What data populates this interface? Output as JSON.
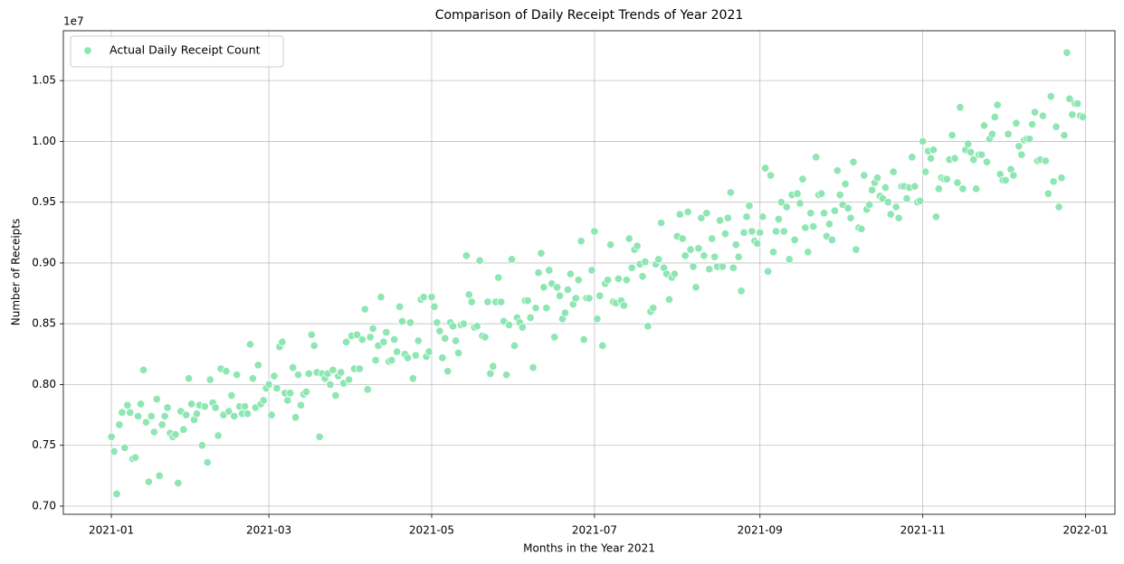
{
  "chart_data": {
    "type": "scatter",
    "title": "Comparison of Daily Receipt Trends of Year 2021",
    "x_label": "Months in the Year 2021",
    "y_label": "Number of Receipts",
    "y_offset_label": "1e7",
    "legend_position": "upper left",
    "grid": true,
    "xlim": [
      -18,
      376
    ],
    "ylim": [
      0.6933,
      1.091
    ],
    "xticks": [
      {
        "value": 0,
        "label": "2021-01"
      },
      {
        "value": 59,
        "label": "2021-03"
      },
      {
        "value": 120,
        "label": "2021-05"
      },
      {
        "value": 181,
        "label": "2021-07"
      },
      {
        "value": 243,
        "label": "2021-09"
      },
      {
        "value": 304,
        "label": "2021-11"
      },
      {
        "value": 365,
        "label": "2022-01"
      }
    ],
    "yticks": [
      {
        "value": 0.7,
        "label": "0.70"
      },
      {
        "value": 0.75,
        "label": "0.75"
      },
      {
        "value": 0.8,
        "label": "0.80"
      },
      {
        "value": 0.85,
        "label": "0.85"
      },
      {
        "value": 0.9,
        "label": "0.90"
      },
      {
        "value": 0.95,
        "label": "0.95"
      },
      {
        "value": 1.0,
        "label": "1.00"
      },
      {
        "value": 1.05,
        "label": "1.05"
      }
    ],
    "x": [
      0,
      1,
      2,
      3,
      4,
      5,
      6,
      7,
      8,
      9,
      10,
      11,
      12,
      13,
      14,
      15,
      16,
      17,
      18,
      19,
      20,
      21,
      22,
      23,
      24,
      25,
      26,
      27,
      28,
      29,
      30,
      31,
      32,
      33,
      34,
      35,
      36,
      37,
      38,
      39,
      40,
      41,
      42,
      43,
      44,
      45,
      46,
      47,
      48,
      49,
      50,
      51,
      52,
      53,
      54,
      55,
      56,
      57,
      58,
      59,
      60,
      61,
      62,
      63,
      64,
      65,
      66,
      67,
      68,
      69,
      70,
      71,
      72,
      73,
      74,
      75,
      76,
      77,
      78,
      79,
      80,
      81,
      82,
      83,
      84,
      85,
      86,
      87,
      88,
      89,
      90,
      91,
      92,
      93,
      94,
      95,
      96,
      97,
      98,
      99,
      100,
      101,
      102,
      103,
      104,
      105,
      106,
      107,
      108,
      109,
      110,
      111,
      112,
      113,
      114,
      115,
      116,
      117,
      118,
      119,
      120,
      121,
      122,
      123,
      124,
      125,
      126,
      127,
      128,
      129,
      130,
      131,
      132,
      133,
      134,
      135,
      136,
      137,
      138,
      139,
      140,
      141,
      142,
      143,
      144,
      145,
      146,
      147,
      148,
      149,
      150,
      151,
      152,
      153,
      154,
      155,
      156,
      157,
      158,
      159,
      160,
      161,
      162,
      163,
      164,
      165,
      166,
      167,
      168,
      169,
      170,
      171,
      172,
      173,
      174,
      175,
      176,
      177,
      178,
      179,
      180,
      181,
      182,
      183,
      184,
      185,
      186,
      187,
      188,
      189,
      190,
      191,
      192,
      193,
      194,
      195,
      196,
      197,
      198,
      199,
      200,
      201,
      202,
      203,
      204,
      205,
      206,
      207,
      208,
      209,
      210,
      211,
      212,
      213,
      214,
      215,
      216,
      217,
      218,
      219,
      220,
      221,
      222,
      223,
      224,
      225,
      226,
      227,
      228,
      229,
      230,
      231,
      232,
      233,
      234,
      235,
      236,
      237,
      238,
      239,
      240,
      241,
      242,
      243,
      244,
      245,
      246,
      247,
      248,
      249,
      250,
      251,
      252,
      253,
      254,
      255,
      256,
      257,
      258,
      259,
      260,
      261,
      262,
      263,
      264,
      265,
      266,
      267,
      268,
      269,
      270,
      271,
      272,
      273,
      274,
      275,
      276,
      277,
      278,
      279,
      280,
      281,
      282,
      283,
      284,
      285,
      286,
      287,
      288,
      289,
      290,
      291,
      292,
      293,
      294,
      295,
      296,
      297,
      298,
      299,
      300,
      301,
      302,
      303,
      304,
      305,
      306,
      307,
      308,
      309,
      310,
      311,
      312,
      313,
      314,
      315,
      316,
      317,
      318,
      319,
      320,
      321,
      322,
      323,
      324,
      325,
      326,
      327,
      328,
      329,
      330,
      331,
      332,
      333,
      334,
      335,
      336,
      337,
      338,
      339,
      340,
      341,
      342,
      343,
      344,
      345,
      346,
      347,
      348,
      349,
      350,
      351,
      352,
      353,
      354,
      355,
      356,
      357,
      358,
      359,
      360,
      361,
      362,
      363,
      364
    ],
    "series": [
      {
        "name": "Actual Daily Receipt Count",
        "color": "#8ee6b3",
        "values": [
          0.757,
          0.745,
          0.71,
          0.767,
          0.777,
          0.748,
          0.783,
          0.777,
          0.739,
          0.74,
          0.774,
          0.784,
          0.812,
          0.769,
          0.72,
          0.774,
          0.761,
          0.788,
          0.725,
          0.767,
          0.774,
          0.781,
          0.76,
          0.757,
          0.759,
          0.719,
          0.778,
          0.763,
          0.775,
          0.805,
          0.784,
          0.771,
          0.776,
          0.783,
          0.75,
          0.782,
          0.736,
          0.804,
          0.785,
          0.781,
          0.758,
          0.813,
          0.775,
          0.811,
          0.778,
          0.791,
          0.774,
          0.808,
          0.782,
          0.776,
          0.782,
          0.776,
          0.833,
          0.805,
          0.781,
          0.816,
          0.784,
          0.787,
          0.797,
          0.8,
          0.775,
          0.807,
          0.797,
          0.831,
          0.835,
          0.793,
          0.787,
          0.793,
          0.814,
          0.773,
          0.808,
          0.783,
          0.792,
          0.794,
          0.809,
          0.841,
          0.832,
          0.81,
          0.757,
          0.809,
          0.805,
          0.809,
          0.8,
          0.812,
          0.791,
          0.807,
          0.81,
          0.801,
          0.835,
          0.804,
          0.84,
          0.813,
          0.841,
          0.813,
          0.837,
          0.862,
          0.796,
          0.839,
          0.846,
          0.82,
          0.832,
          0.872,
          0.835,
          0.843,
          0.819,
          0.82,
          0.837,
          0.827,
          0.864,
          0.852,
          0.825,
          0.822,
          0.851,
          0.805,
          0.824,
          0.836,
          0.87,
          0.872,
          0.823,
          0.827,
          0.872,
          0.864,
          0.851,
          0.844,
          0.822,
          0.838,
          0.811,
          0.851,
          0.848,
          0.836,
          0.826,
          0.849,
          0.85,
          0.906,
          0.874,
          0.868,
          0.847,
          0.848,
          0.902,
          0.84,
          0.839,
          0.868,
          0.809,
          0.815,
          0.868,
          0.888,
          0.868,
          0.852,
          0.808,
          0.849,
          0.903,
          0.832,
          0.855,
          0.851,
          0.847,
          0.869,
          0.869,
          0.855,
          0.814,
          0.863,
          0.892,
          0.908,
          0.88,
          0.863,
          0.894,
          0.883,
          0.839,
          0.88,
          0.873,
          0.854,
          0.859,
          0.878,
          0.891,
          0.866,
          0.871,
          0.886,
          0.918,
          0.837,
          0.871,
          0.871,
          0.894,
          0.926,
          0.854,
          0.873,
          0.832,
          0.883,
          0.886,
          0.915,
          0.868,
          0.867,
          0.887,
          0.869,
          0.865,
          0.886,
          0.92,
          0.896,
          0.911,
          0.914,
          0.899,
          0.889,
          0.901,
          0.848,
          0.86,
          0.863,
          0.899,
          0.903,
          0.933,
          0.896,
          0.891,
          0.87,
          0.888,
          0.891,
          0.922,
          0.94,
          0.92,
          0.906,
          0.942,
          0.911,
          0.897,
          0.88,
          0.912,
          0.937,
          0.906,
          0.941,
          0.895,
          0.92,
          0.905,
          0.897,
          0.935,
          0.897,
          0.924,
          0.937,
          0.958,
          0.896,
          0.915,
          0.905,
          0.877,
          0.925,
          0.938,
          0.947,
          0.926,
          0.918,
          0.916,
          0.925,
          0.938,
          0.978,
          0.893,
          0.972,
          0.909,
          0.926,
          0.936,
          0.95,
          0.926,
          0.946,
          0.903,
          0.956,
          0.919,
          0.957,
          0.949,
          0.969,
          0.929,
          0.909,
          0.941,
          0.93,
          0.987,
          0.956,
          0.957,
          0.941,
          0.922,
          0.932,
          0.919,
          0.943,
          0.976,
          0.956,
          0.948,
          0.965,
          0.945,
          0.937,
          0.983,
          0.911,
          0.929,
          0.928,
          0.972,
          0.944,
          0.948,
          0.96,
          0.966,
          0.97,
          0.955,
          0.953,
          0.962,
          0.95,
          0.94,
          0.975,
          0.946,
          0.937,
          0.963,
          0.963,
          0.953,
          0.962,
          0.987,
          0.963,
          0.95,
          0.951,
          1.0,
          0.975,
          0.992,
          0.986,
          0.993,
          0.938,
          0.961,
          0.97,
          0.969,
          0.969,
          0.985,
          1.005,
          0.986,
          0.966,
          1.028,
          0.961,
          0.993,
          0.998,
          0.991,
          0.985,
          0.961,
          0.989,
          0.989,
          1.013,
          0.983,
          1.002,
          1.006,
          1.02,
          1.03,
          0.973,
          0.968,
          0.968,
          1.006,
          0.977,
          0.972,
          1.015,
          0.996,
          0.989,
          1.001,
          1.002,
          1.002,
          1.014,
          1.024,
          0.984,
          0.985,
          1.021,
          0.984,
          0.957,
          1.037,
          0.967,
          1.012,
          0.946,
          0.97,
          1.005,
          1.073,
          1.035,
          1.022,
          1.031,
          1.031,
          1.021,
          1.02
        ]
      }
    ]
  }
}
